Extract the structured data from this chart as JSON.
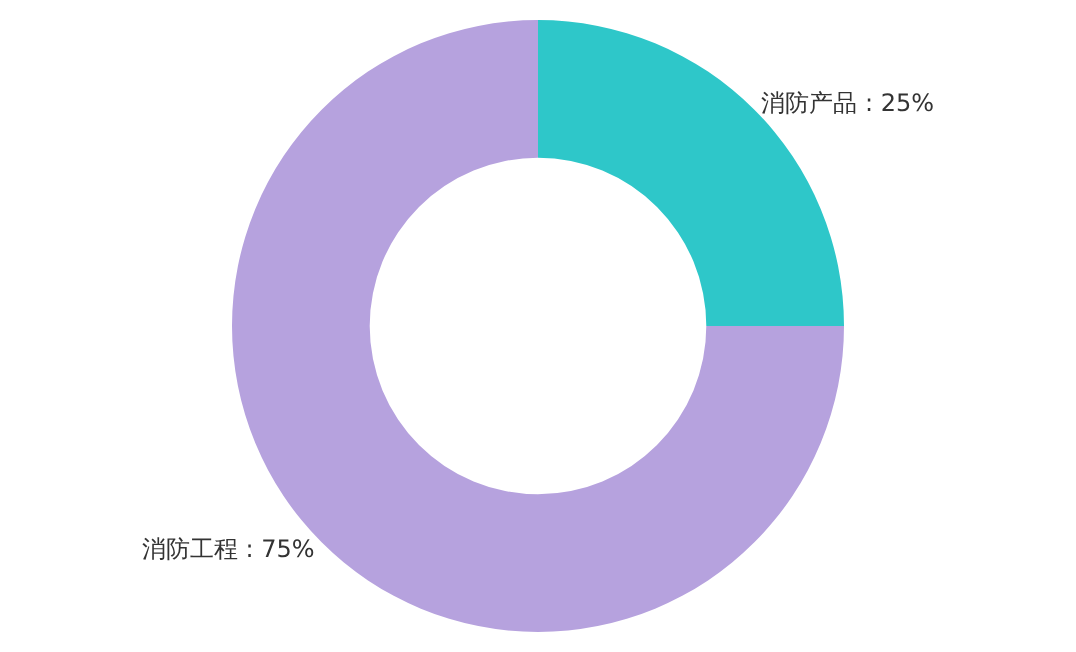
{
  "chart_data": {
    "type": "donut",
    "categories": [
      "消防产品",
      "消防工程"
    ],
    "values": [
      25,
      75
    ],
    "value_labels": [
      "25%",
      "75%"
    ],
    "colors": [
      "#2ec7c9",
      "#b6a2de"
    ],
    "legend": false
  }
}
